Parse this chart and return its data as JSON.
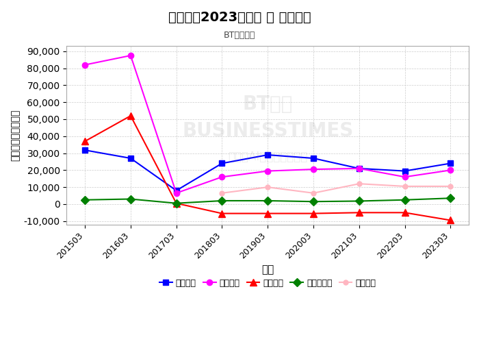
{
  "title": "黄山胶囊2023三季报 － 费用管理",
  "subtitle": "BT财经绘制",
  "xlabel": "项目",
  "ylabel": "数额（人民币千元）",
  "x_labels": [
    "201503",
    "201603",
    "201703",
    "201803",
    "201903",
    "202003",
    "202103",
    "202203",
    "202303"
  ],
  "ylim": [
    -12000,
    93000
  ],
  "yticks": [
    -10000,
    0,
    10000,
    20000,
    30000,
    40000,
    50000,
    60000,
    70000,
    80000,
    90000
  ],
  "series": {
    "销售费用": {
      "values": [
        31800,
        27000,
        8000,
        24000,
        29000,
        27000,
        21000,
        19500,
        24000
      ],
      "color": "#0000FF",
      "marker": "s",
      "markersize": 6
    },
    "管理费用": {
      "values": [
        82000,
        87500,
        6500,
        16000,
        19500,
        20500,
        21000,
        16000,
        20000
      ],
      "color": "#FF00FF",
      "marker": "o",
      "markersize": 6
    },
    "财务费用": {
      "values": [
        37000,
        52000,
        500,
        -5500,
        -5500,
        -5500,
        -5000,
        -5000,
        -9500
      ],
      "color": "#FF0000",
      "marker": "^",
      "markersize": 7
    },
    "税金及附加": {
      "values": [
        2500,
        3000,
        500,
        2000,
        2000,
        1500,
        1800,
        2500,
        3500
      ],
      "color": "#008000",
      "marker": "D",
      "markersize": 6
    },
    "研发费用": {
      "values": [
        null,
        null,
        null,
        6500,
        10000,
        6500,
        12000,
        10500,
        10500
      ],
      "color": "#FFB6C1",
      "marker": "o",
      "markersize": 5
    }
  },
  "background_color": "#FFFFFF",
  "plot_bg_color": "#FFFFFF",
  "grid_color": "#CCCCCC"
}
